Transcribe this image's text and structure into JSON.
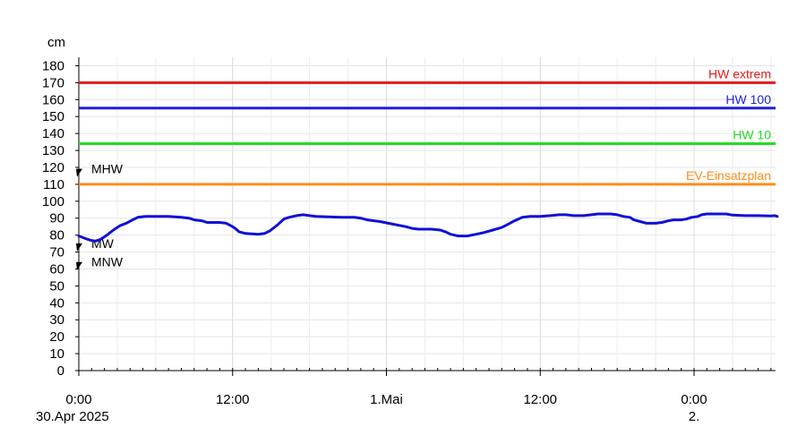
{
  "chart_data": {
    "type": "line",
    "ylabel": "cm",
    "ylim": [
      0,
      185
    ],
    "yticks": [
      0,
      10,
      20,
      30,
      40,
      50,
      60,
      70,
      80,
      90,
      100,
      110,
      120,
      130,
      140,
      150,
      160,
      170,
      180
    ],
    "xlim_hours": [
      0,
      54.5
    ],
    "x_ticks": [
      {
        "hour": 0,
        "label": "0:00",
        "sublabel": "30.Apr 2025"
      },
      {
        "hour": 12,
        "label": "12:00",
        "sublabel": ""
      },
      {
        "hour": 24,
        "label": "1.Mai",
        "sublabel": ""
      },
      {
        "hour": 36,
        "label": "12:00",
        "sublabel": ""
      },
      {
        "hour": 48,
        "label": "0:00",
        "sublabel": "2."
      }
    ],
    "grid": true,
    "thresholds": [
      {
        "label": "HW extrem",
        "value": 170,
        "color": "#e41a1c"
      },
      {
        "label": "HW 100",
        "value": 155,
        "color": "#1f1fd6"
      },
      {
        "label": "HW 10",
        "value": 134,
        "color": "#22dd22"
      },
      {
        "label": "EV-Einsatzplan",
        "value": 110,
        "color": "#ff8c1a"
      }
    ],
    "markers": [
      {
        "label": "MHW",
        "value": 117
      },
      {
        "label": "MW",
        "value": 73
      },
      {
        "label": "MNW",
        "value": 62
      }
    ],
    "series": [
      {
        "color": "#1010d8",
        "points": [
          [
            0.0,
            79.5
          ],
          [
            0.5,
            78
          ],
          [
            0.9,
            77
          ],
          [
            1.3,
            76.5
          ],
          [
            1.7,
            77.5
          ],
          [
            2.2,
            80
          ],
          [
            2.7,
            83
          ],
          [
            3.2,
            85.5
          ],
          [
            3.7,
            87
          ],
          [
            4.2,
            89
          ],
          [
            4.6,
            90.5
          ],
          [
            5.2,
            91
          ],
          [
            6.0,
            91
          ],
          [
            7.0,
            91
          ],
          [
            8.0,
            90.5
          ],
          [
            8.6,
            90
          ],
          [
            9.0,
            89
          ],
          [
            9.6,
            88.5
          ],
          [
            10.0,
            87.5
          ],
          [
            11.0,
            87.5
          ],
          [
            11.5,
            87
          ],
          [
            12.0,
            85
          ],
          [
            12.2,
            84
          ],
          [
            12.5,
            82
          ],
          [
            13.0,
            81
          ],
          [
            14.0,
            80.5
          ],
          [
            14.5,
            81
          ],
          [
            14.9,
            82.5
          ],
          [
            15.5,
            86
          ],
          [
            16.0,
            89.5
          ],
          [
            16.4,
            90.5
          ],
          [
            17.0,
            91.5
          ],
          [
            17.5,
            92
          ],
          [
            18.0,
            91.5
          ],
          [
            18.5,
            91
          ],
          [
            19.5,
            90.8
          ],
          [
            20.5,
            90.5
          ],
          [
            21.5,
            90.5
          ],
          [
            22.0,
            90
          ],
          [
            22.5,
            89
          ],
          [
            23.5,
            88
          ],
          [
            24.5,
            86.5
          ],
          [
            25.5,
            85
          ],
          [
            26.0,
            84
          ],
          [
            26.5,
            83.5
          ],
          [
            27.5,
            83.5
          ],
          [
            28.2,
            83
          ],
          [
            28.6,
            82
          ],
          [
            29.0,
            80.5
          ],
          [
            29.6,
            79.5
          ],
          [
            30.3,
            79.5
          ],
          [
            31.0,
            80.5
          ],
          [
            31.6,
            81.5
          ],
          [
            32.3,
            83
          ],
          [
            33.0,
            84.5
          ],
          [
            33.5,
            86.5
          ],
          [
            34.0,
            88.5
          ],
          [
            34.6,
            90.5
          ],
          [
            35.2,
            91
          ],
          [
            36.0,
            91
          ],
          [
            36.8,
            91.5
          ],
          [
            37.5,
            92
          ],
          [
            38.0,
            92
          ],
          [
            38.6,
            91.5
          ],
          [
            39.4,
            91.5
          ],
          [
            40.0,
            92
          ],
          [
            40.5,
            92.5
          ],
          [
            41.0,
            92.5
          ],
          [
            41.5,
            92.5
          ],
          [
            42.0,
            92
          ],
          [
            42.5,
            91
          ],
          [
            43.0,
            90.5
          ],
          [
            43.3,
            89
          ],
          [
            43.8,
            88
          ],
          [
            44.3,
            87
          ],
          [
            45.0,
            87
          ],
          [
            45.5,
            87.5
          ],
          [
            46.0,
            88.5
          ],
          [
            46.4,
            89
          ],
          [
            47.0,
            89
          ],
          [
            47.4,
            89.5
          ],
          [
            47.8,
            90.5
          ],
          [
            48.3,
            91
          ],
          [
            48.6,
            92
          ],
          [
            49.0,
            92.5
          ],
          [
            50.5,
            92.5
          ],
          [
            51.0,
            91.8
          ],
          [
            52.0,
            91.5
          ],
          [
            53.0,
            91.5
          ],
          [
            54.0,
            91.3
          ],
          [
            54.3,
            91.5
          ],
          [
            54.5,
            91
          ]
        ]
      }
    ]
  }
}
